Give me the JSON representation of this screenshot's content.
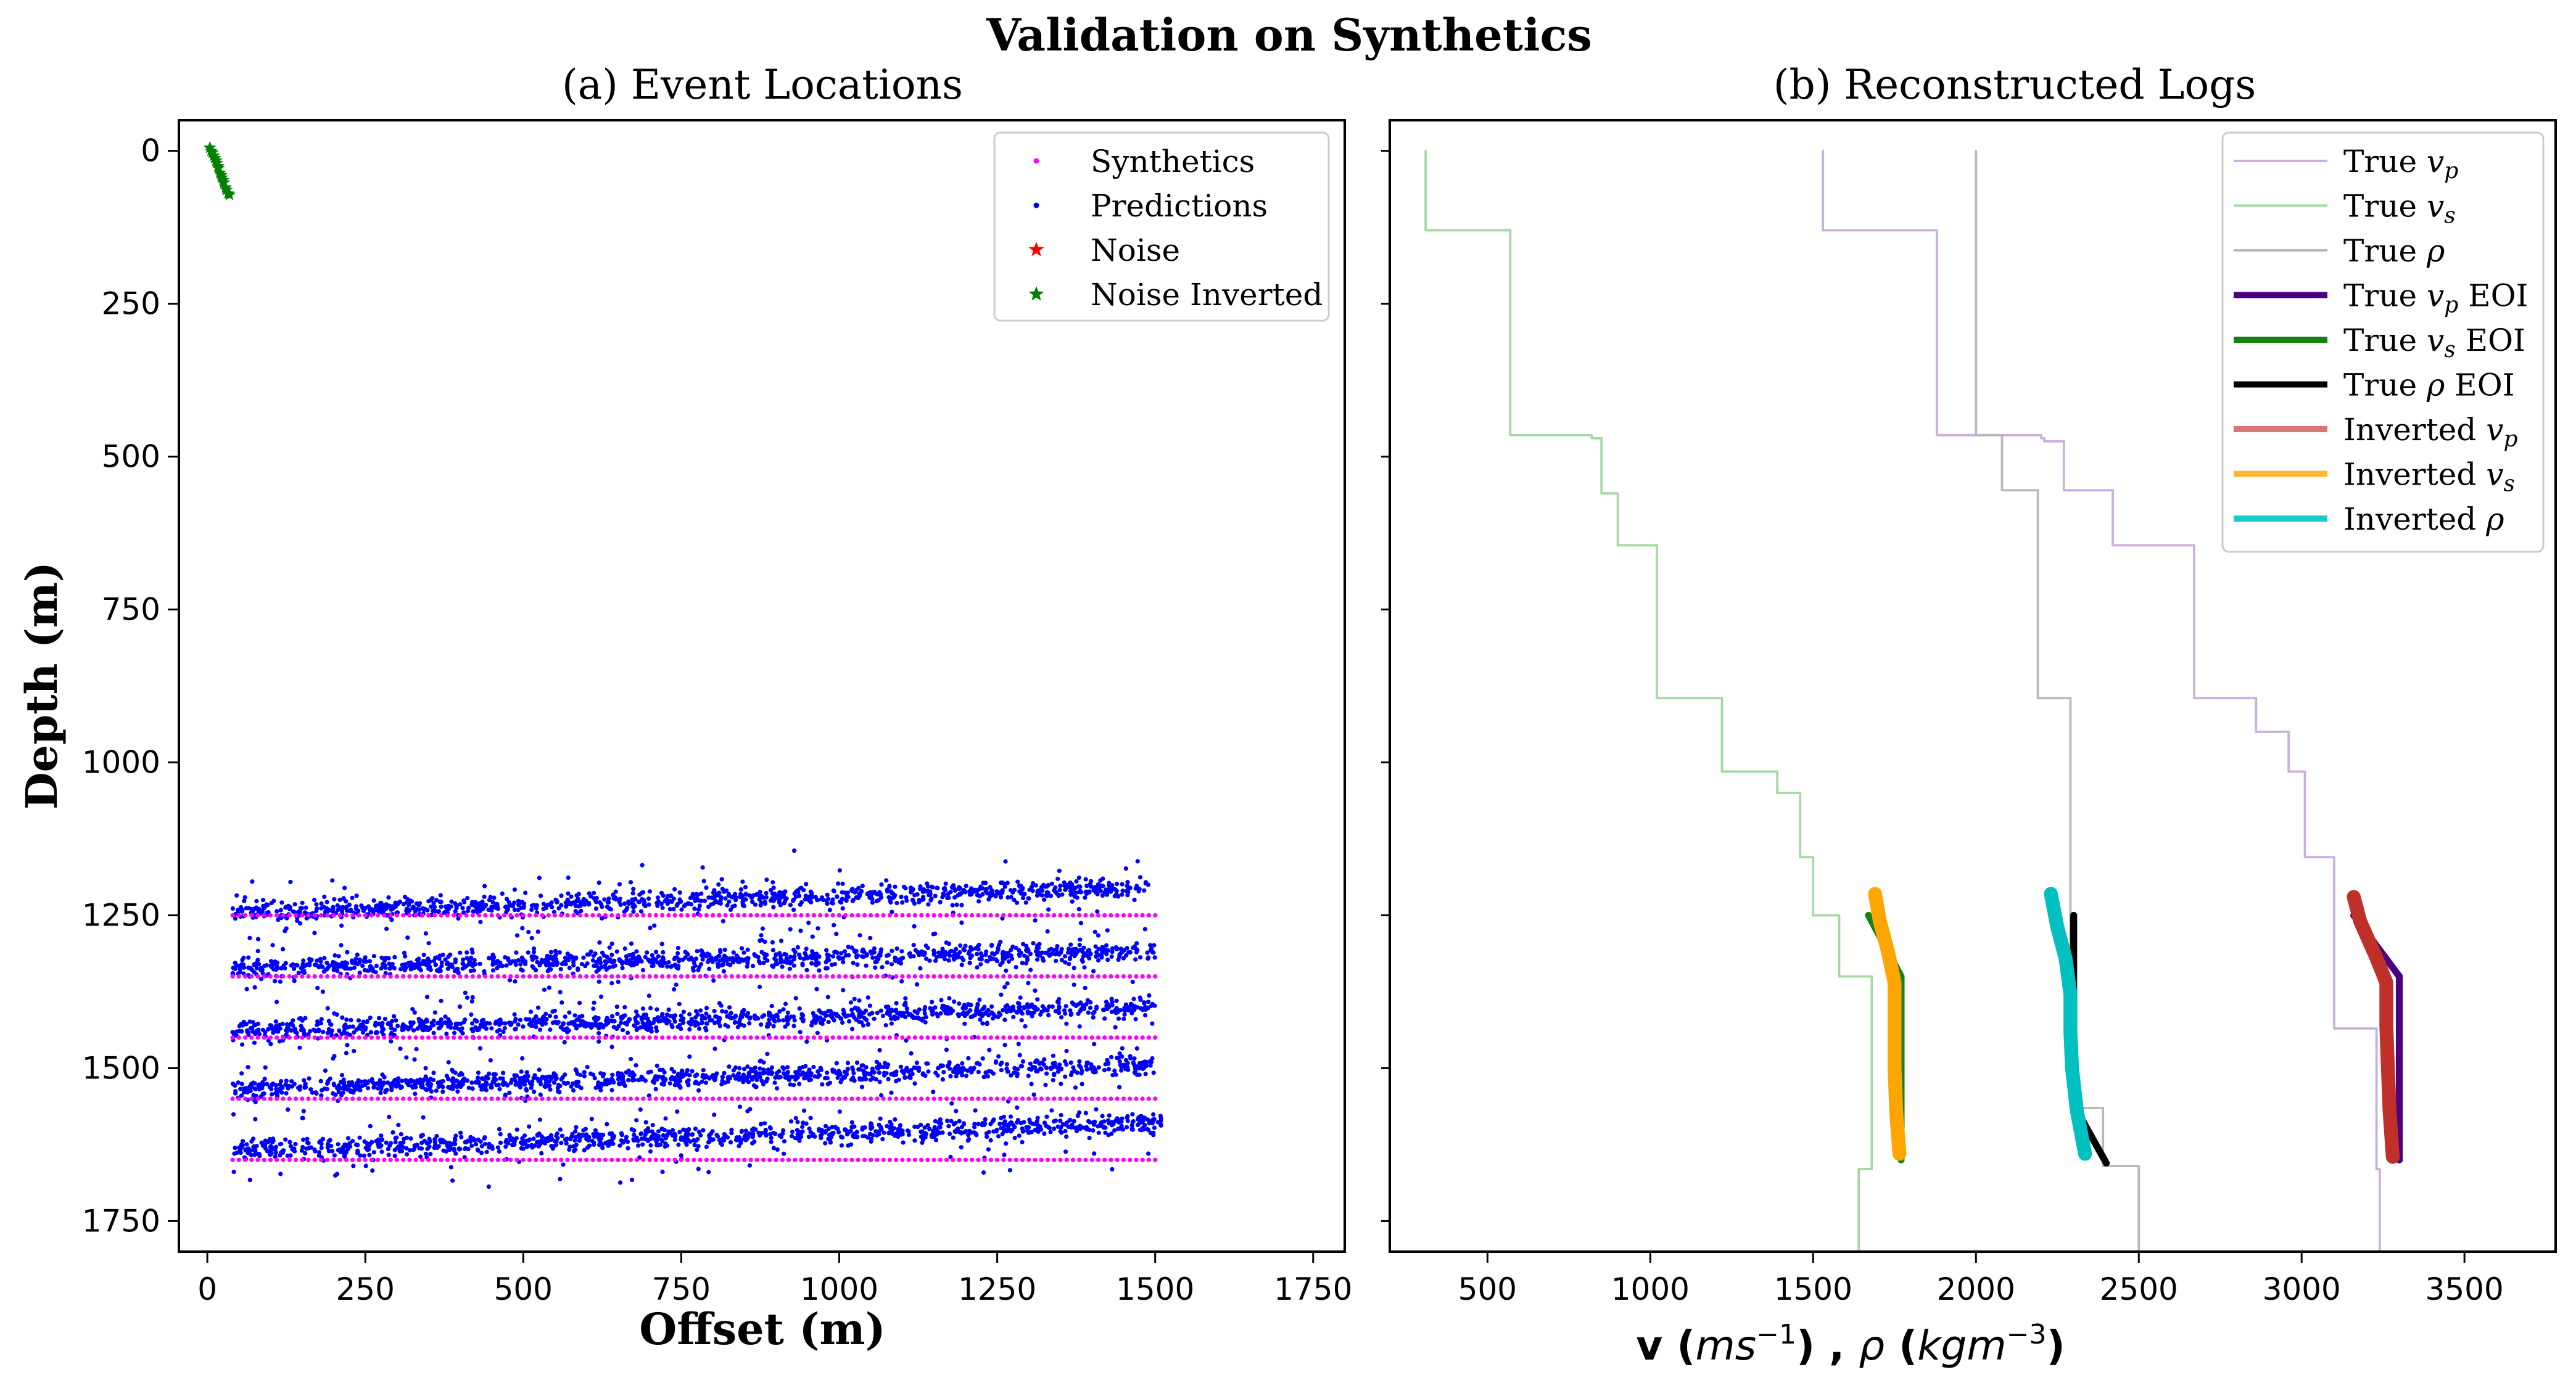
{
  "figure_title": "Validation on Synthetics",
  "chart_data": [
    {
      "type": "scatter",
      "title": "(a) Event Locations",
      "xlabel": "Offset (m)",
      "ylabel": "Depth (m)",
      "xlim": [
        -45,
        1800
      ],
      "ylim": [
        1800,
        -50
      ],
      "y_inverted": true,
      "xticks": [
        0,
        250,
        500,
        750,
        1000,
        1250,
        1500,
        1750
      ],
      "yticks": [
        0,
        250,
        500,
        750,
        1000,
        1250,
        1500,
        1750
      ],
      "legend_position": "top-right",
      "series": [
        {
          "name": "Synthetics",
          "marker": "dot",
          "color": "#ff00ff",
          "layer_depths": [
            1250,
            1350,
            1450,
            1550,
            1650
          ],
          "x_range": [
            40,
            1500
          ],
          "x_step": 10
        },
        {
          "name": "Predictions",
          "marker": "dot",
          "color": "#0000ff",
          "clusters": [
            {
              "x_range": [
                40,
                1490
              ],
              "depth_start": 1245,
              "depth_end": 1205
            },
            {
              "x_range": [
                40,
                1500
              ],
              "depth_start": 1335,
              "depth_end": 1310
            },
            {
              "x_range": [
                40,
                1500
              ],
              "depth_start": 1440,
              "depth_end": 1400
            },
            {
              "x_range": [
                40,
                1500
              ],
              "depth_start": 1535,
              "depth_end": 1495
            },
            {
              "x_range": [
                40,
                1510
              ],
              "depth_start": 1635,
              "depth_end": 1590
            }
          ]
        },
        {
          "name": "Noise",
          "marker": "star",
          "color": "#ff0000",
          "points": []
        },
        {
          "name": "Noise Inverted",
          "marker": "star",
          "color": "#008000",
          "points": [
            [
              4,
              -5
            ],
            [
              8,
              3
            ],
            [
              12,
              12
            ],
            [
              15,
              20
            ],
            [
              18,
              28
            ],
            [
              20,
              36
            ],
            [
              23,
              44
            ],
            [
              26,
              52
            ],
            [
              29,
              60
            ],
            [
              33,
              70
            ],
            [
              10,
              8
            ],
            [
              17,
              25
            ],
            [
              22,
              40
            ],
            [
              30,
              64
            ],
            [
              6,
              0
            ],
            [
              14,
              16
            ],
            [
              25,
              48
            ],
            [
              35,
              72
            ]
          ]
        }
      ]
    },
    {
      "type": "line",
      "title": "(b) Reconstructed Logs",
      "xlabel_parts": [
        "v (",
        "ms",
        "−1",
        ") ,  ",
        "ρ",
        " (",
        "kgm",
        "−3",
        ")"
      ],
      "xlim": [
        200,
        3780
      ],
      "ylim": [
        1800,
        -50
      ],
      "y_inverted": true,
      "xticks": [
        500,
        1000,
        1500,
        2000,
        2500,
        3000,
        3500
      ],
      "legend_position": "top-right",
      "series": [
        {
          "name": "True vp",
          "legend_main": "True ",
          "legend_sym": "v",
          "legend_sub": "p",
          "legend_suffix": "",
          "color": "#c9aee0",
          "width": 1.5,
          "points": [
            [
              1530,
              0
            ],
            [
              1530,
              130
            ],
            [
              1880,
              130
            ],
            [
              1880,
              465
            ],
            [
              2200,
              465
            ],
            [
              2200,
              470
            ],
            [
              2210,
              470
            ],
            [
              2210,
              475
            ],
            [
              2270,
              475
            ],
            [
              2270,
              555
            ],
            [
              2420,
              555
            ],
            [
              2420,
              645
            ],
            [
              2670,
              645
            ],
            [
              2670,
              895
            ],
            [
              2860,
              895
            ],
            [
              2860,
              950
            ],
            [
              2960,
              950
            ],
            [
              2960,
              1015
            ],
            [
              3010,
              1015
            ],
            [
              3010,
              1155
            ],
            [
              3100,
              1155
            ],
            [
              3100,
              1435
            ],
            [
              3230,
              1435
            ],
            [
              3230,
              1665
            ],
            [
              3240,
              1665
            ],
            [
              3240,
              1800
            ]
          ]
        },
        {
          "name": "True vs",
          "legend_main": "True ",
          "legend_sym": "v",
          "legend_sub": "s",
          "legend_suffix": "",
          "color": "#a4d8a4",
          "width": 1.5,
          "points": [
            [
              310,
              0
            ],
            [
              310,
              130
            ],
            [
              570,
              130
            ],
            [
              570,
              465
            ],
            [
              820,
              465
            ],
            [
              820,
              470
            ],
            [
              850,
              470
            ],
            [
              850,
              560
            ],
            [
              900,
              560
            ],
            [
              900,
              645
            ],
            [
              1020,
              645
            ],
            [
              1020,
              895
            ],
            [
              1220,
              895
            ],
            [
              1220,
              1015
            ],
            [
              1390,
              1015
            ],
            [
              1390,
              1050
            ],
            [
              1460,
              1050
            ],
            [
              1460,
              1155
            ],
            [
              1500,
              1155
            ],
            [
              1500,
              1250
            ],
            [
              1580,
              1250
            ],
            [
              1580,
              1350
            ],
            [
              1680,
              1350
            ],
            [
              1680,
              1665
            ],
            [
              1640,
              1665
            ],
            [
              1640,
              1800
            ]
          ]
        },
        {
          "name": "True rho",
          "legend_main": "True ",
          "legend_sym": "ρ",
          "legend_sub": "",
          "legend_suffix": "",
          "color": "#b8b8b8",
          "width": 1.5,
          "points": [
            [
              2000,
              0
            ],
            [
              2000,
              465
            ],
            [
              2080,
              465
            ],
            [
              2080,
              555
            ],
            [
              2190,
              555
            ],
            [
              2190,
              895
            ],
            [
              2290,
              895
            ],
            [
              2290,
              1565
            ],
            [
              2390,
              1565
            ],
            [
              2390,
              1660
            ],
            [
              2500,
              1660
            ],
            [
              2500,
              1800
            ]
          ]
        },
        {
          "name": "True vp EOI",
          "legend_main": "True ",
          "legend_sym": "v",
          "legend_sub": "p",
          "legend_suffix": " EOI",
          "color": "#4b0082",
          "width": 4.5,
          "points": [
            [
              3160,
              1250
            ],
            [
              3300,
              1350
            ],
            [
              3300,
              1650
            ]
          ]
        },
        {
          "name": "True vs EOI",
          "legend_main": "True ",
          "legend_sym": "v",
          "legend_sub": "s",
          "legend_suffix": " EOI",
          "color": "#138413",
          "width": 4.5,
          "points": [
            [
              1670,
              1250
            ],
            [
              1770,
              1350
            ],
            [
              1770,
              1650
            ]
          ]
        },
        {
          "name": "True rho EOI",
          "legend_main": "True ",
          "legend_sym": "ρ",
          "legend_sub": "",
          "legend_suffix": " EOI",
          "color": "#000000",
          "width": 4.5,
          "points": [
            [
              2300,
              1250
            ],
            [
              2300,
              1560
            ],
            [
              2400,
              1655
            ]
          ]
        },
        {
          "name": "Inverted vp",
          "legend_main": "Inverted ",
          "legend_sym": "v",
          "legend_sub": "p",
          "legend_suffix": "",
          "color": "#c0302a",
          "legend_color": "#d77770",
          "width": 9,
          "points": [
            [
              3160,
              1220
            ],
            [
              3180,
              1260
            ],
            [
              3230,
              1320
            ],
            [
              3260,
              1360
            ],
            [
              3260,
              1430
            ],
            [
              3265,
              1500
            ],
            [
              3270,
              1570
            ],
            [
              3280,
              1645
            ]
          ]
        },
        {
          "name": "Inverted vs",
          "legend_main": "Inverted ",
          "legend_sym": "v",
          "legend_sub": "s",
          "legend_suffix": "",
          "color": "#ffa500",
          "legend_color": "#fab935",
          "width": 9,
          "points": [
            [
              1690,
              1215
            ],
            [
              1705,
              1260
            ],
            [
              1730,
              1310
            ],
            [
              1750,
              1360
            ],
            [
              1750,
              1430
            ],
            [
              1750,
              1500
            ],
            [
              1755,
              1570
            ],
            [
              1765,
              1640
            ]
          ]
        },
        {
          "name": "Inverted rho",
          "legend_main": "Inverted ",
          "legend_sym": "ρ",
          "legend_sub": "",
          "legend_suffix": "",
          "color": "#00c0c0",
          "legend_color": "#19cccc",
          "width": 9,
          "points": [
            [
              2230,
              1215
            ],
            [
              2250,
              1270
            ],
            [
              2275,
              1320
            ],
            [
              2290,
              1380
            ],
            [
              2290,
              1440
            ],
            [
              2295,
              1500
            ],
            [
              2310,
              1570
            ],
            [
              2335,
              1640
            ]
          ]
        }
      ]
    }
  ]
}
